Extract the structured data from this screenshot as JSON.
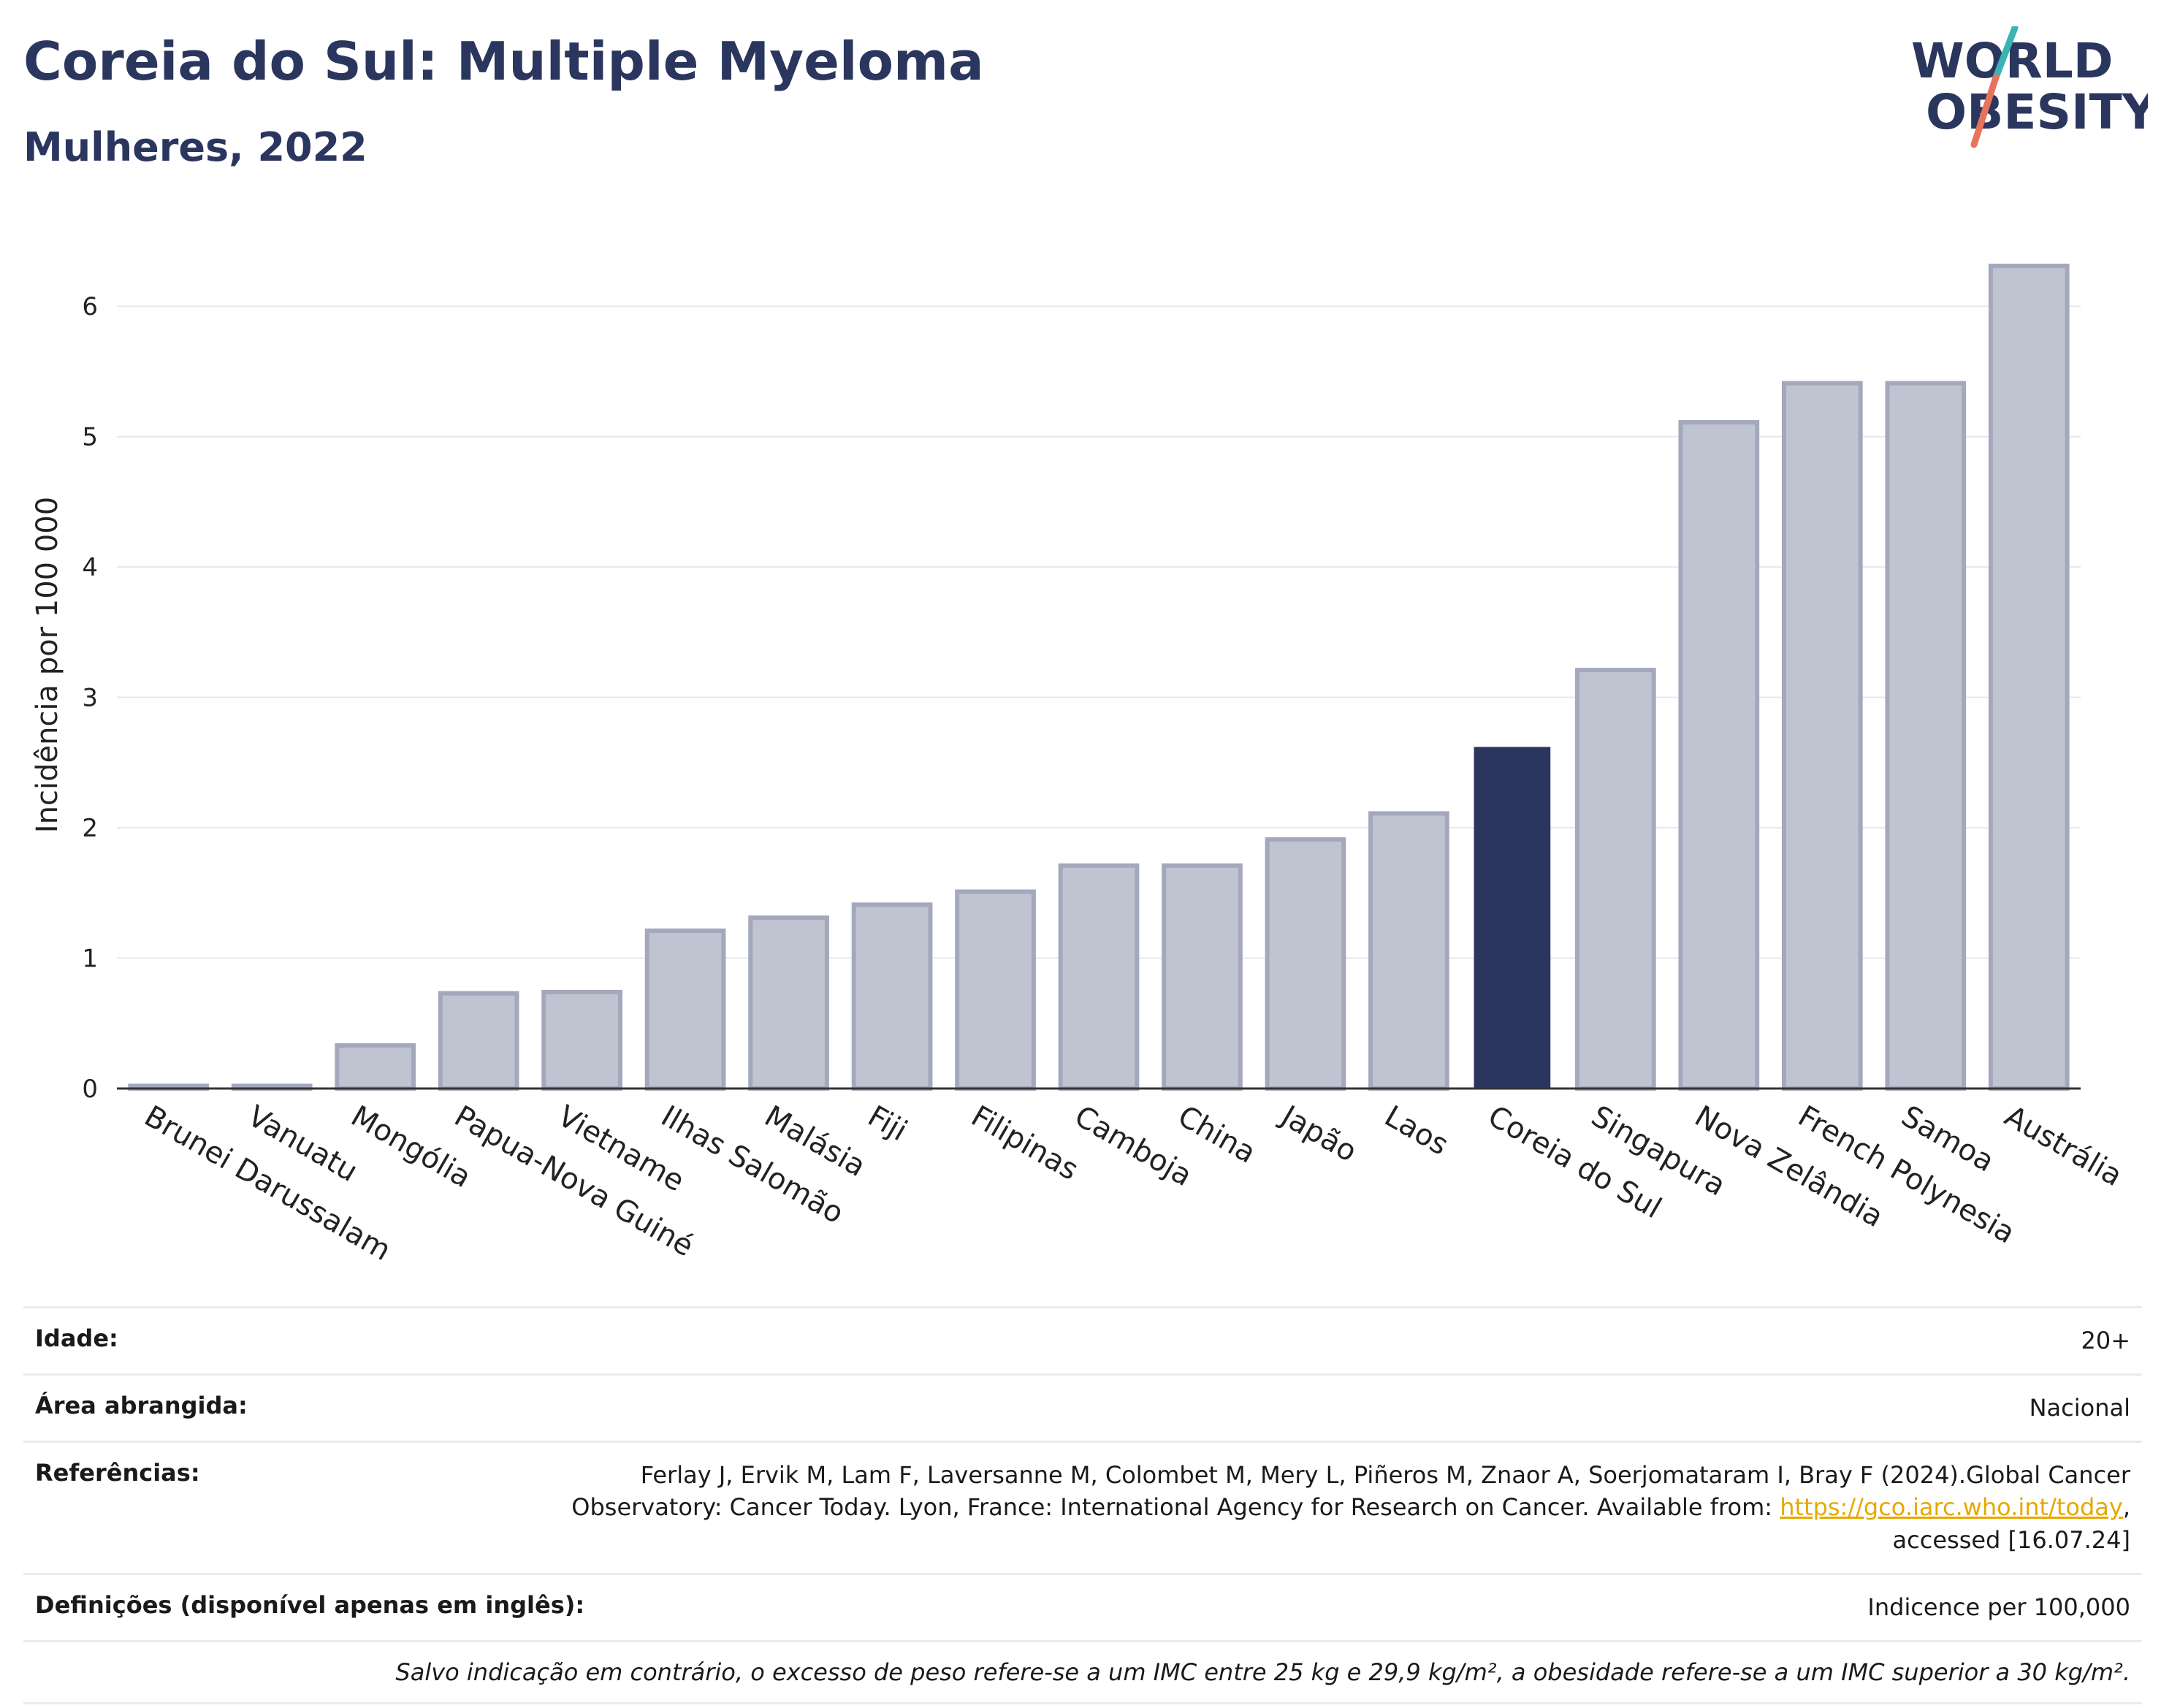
{
  "header": {
    "title": "Coreia do Sul: Multiple Myeloma",
    "subtitle": "Mulheres, 2022"
  },
  "logo": {
    "line1": "WORLD",
    "line2": "OBESITY",
    "icon": "world-obesity-logo",
    "colors": {
      "text": "#2b365e",
      "slash_top": "#3bb3b5",
      "slash_bottom": "#e8735a"
    }
  },
  "chart_data": {
    "type": "bar",
    "ylabel": "Incidência por 100 000",
    "ylim": [
      0,
      6.5
    ],
    "yticks": [
      0,
      1,
      2,
      3,
      4,
      5,
      6
    ],
    "grid": true,
    "categories": [
      "Brunei Darussalam",
      "Vanuatu",
      "Mongólia",
      "Papua-Nova Guiné",
      "Vietname",
      "Ilhas Salomão",
      "Malásia",
      "Fiji",
      "Filipinas",
      "Camboja",
      "China",
      "Japão",
      "Laos",
      "Coreia do Sul",
      "Singapura",
      "Nova Zelândia",
      "French Polynesia",
      "Samoa",
      "Austrália"
    ],
    "values": [
      0.02,
      0.02,
      0.33,
      0.73,
      0.74,
      1.21,
      1.31,
      1.41,
      1.51,
      1.71,
      1.71,
      1.91,
      2.11,
      2.62,
      3.21,
      5.11,
      5.41,
      5.41,
      6.31
    ],
    "highlight": "Coreia do Sul",
    "colors": {
      "bar": "#c0c3d0",
      "bar_border": "#a3a8bd",
      "highlight": "#2b365e"
    }
  },
  "info": {
    "rows": [
      {
        "label": "Idade:",
        "value": "20+"
      },
      {
        "label": "Área abrangida:",
        "value": "Nacional"
      },
      {
        "label": "Referências:",
        "value_line1": "Ferlay J, Ervik M, Lam F, Laversanne M, Colombet M, Mery L, Piñeros M, Znaor A, Soerjomataram I, Bray F (2024).Global Cancer",
        "value_line2": "Observatory: Cancer Today. Lyon, France: International Agency for Research on Cancer. Available from: ",
        "link": "https://gco.iarc.who.int/today",
        "value_line2_end": ",",
        "value_line3": "accessed [16.07.24]"
      },
      {
        "label": "Definições (disponível apenas em inglês):",
        "value": "Indicence per 100,000"
      }
    ],
    "note": "Salvo indicação em contrário, o excesso de peso refere-se a um IMC entre 25 kg e 29,9 kg/m², a obesidade refere-se a um IMC superior a 30 kg/m²."
  }
}
